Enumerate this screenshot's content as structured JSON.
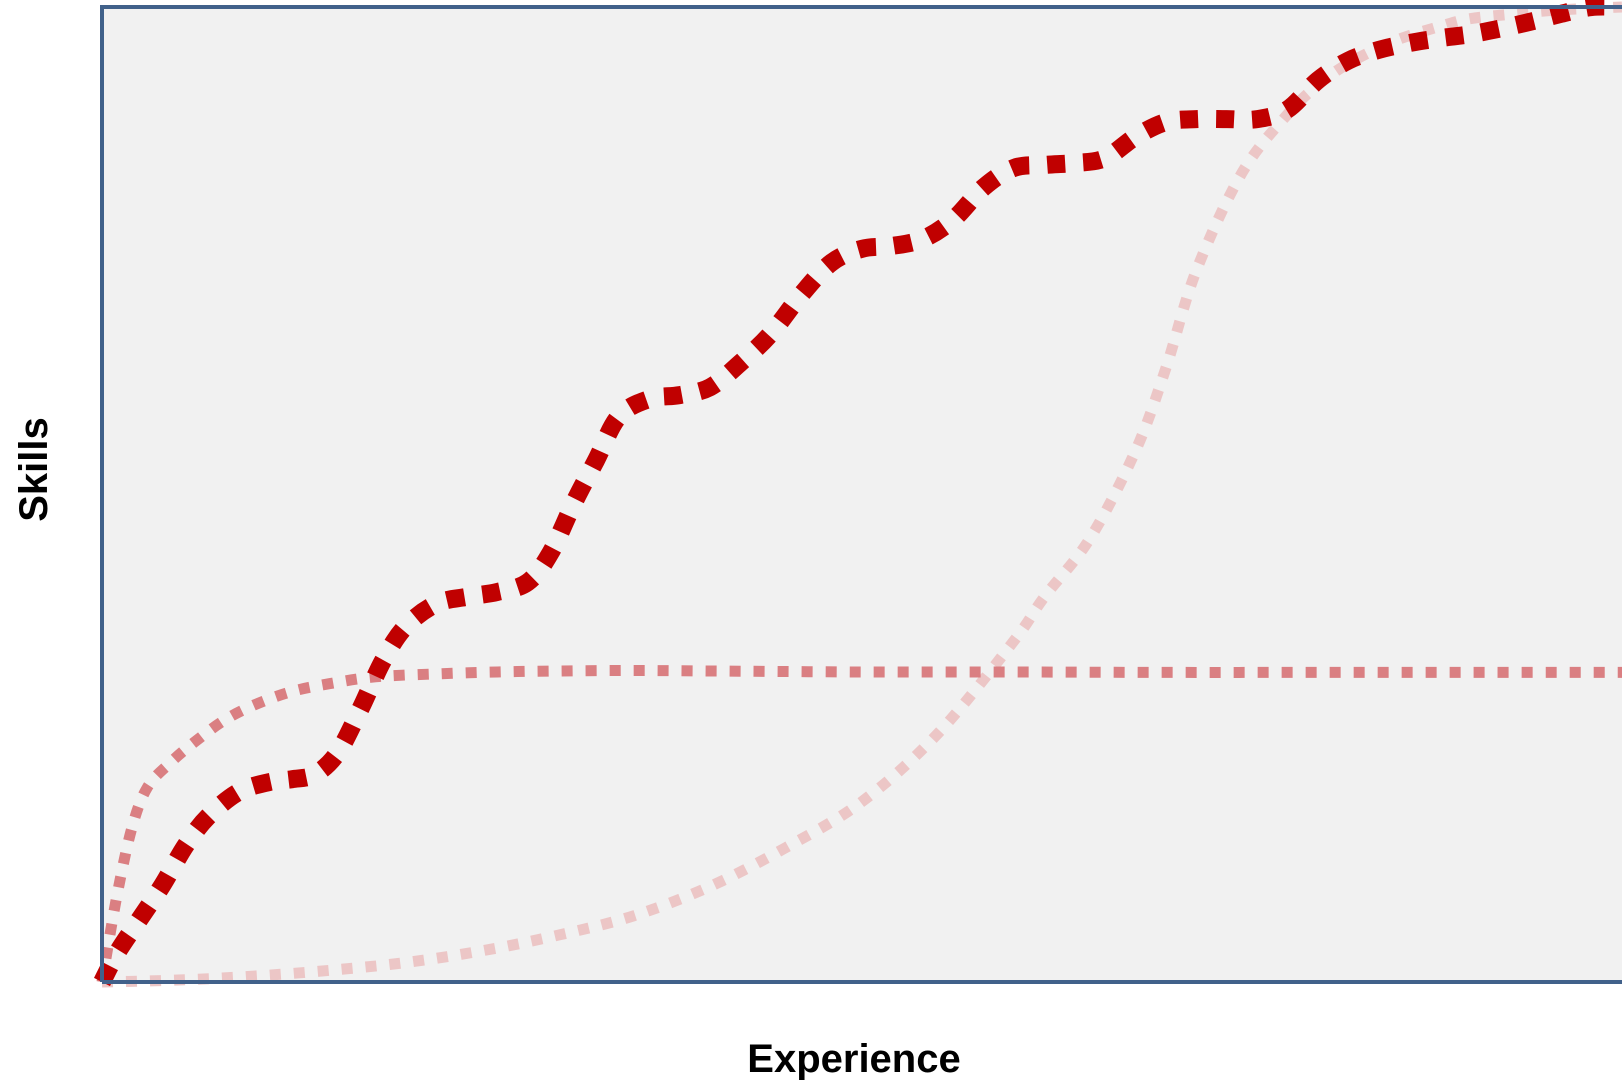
{
  "chart_data": {
    "type": "line",
    "title": "",
    "xlabel": "Experience",
    "ylabel": "Skills",
    "xlim": [
      0,
      100
    ],
    "ylim": [
      0,
      100
    ],
    "grid": false,
    "legend": "none",
    "tick_labels": false,
    "background_color": "#f1f1f1",
    "axis_color": "#41618a",
    "series": [
      {
        "color": "#ecc6c6",
        "style": "dotted",
        "x": [
          0,
          5,
          10,
          15,
          20,
          25,
          30,
          35,
          40,
          45,
          50,
          55,
          60,
          62,
          65,
          68,
          70,
          72,
          75,
          78,
          80,
          82,
          85,
          88,
          90,
          93,
          95,
          97,
          100
        ],
        "y": [
          0,
          0.2,
          0.6,
          1.2,
          2.0,
          3.2,
          4.8,
          6.8,
          9.8,
          13.8,
          18.5,
          25.5,
          35.0,
          39.5,
          45.5,
          54.5,
          63.0,
          73.0,
          83.0,
          89.0,
          92.0,
          94.2,
          96.5,
          98.0,
          98.8,
          99.3,
          99.6,
          99.8,
          100
        ]
      },
      {
        "color": "#da7f82",
        "style": "dotted",
        "x": [
          0,
          1,
          2,
          3,
          4.5,
          6,
          8,
          10,
          12.5,
          15,
          18,
          22,
          26,
          30,
          35,
          40,
          50,
          60,
          70,
          80,
          90,
          100
        ],
        "y": [
          0,
          9,
          16,
          20,
          22.5,
          24.5,
          26.8,
          28.4,
          29.8,
          30.6,
          31.3,
          31.6,
          31.8,
          31.9,
          31.95,
          31.9,
          31.8,
          31.8,
          31.75,
          31.75,
          31.75,
          31.75
        ]
      },
      {
        "color": "#c00000",
        "style": "dashed",
        "x": [
          0,
          1,
          2.5,
          4,
          5.5,
          7,
          9,
          11,
          12.5,
          14,
          15.5,
          17,
          18.5,
          20,
          22,
          24,
          26,
          28,
          29.5,
          31,
          32.5,
          34,
          36,
          38,
          40,
          42,
          44,
          46,
          48,
          50,
          52,
          54,
          56,
          58,
          60,
          62,
          64,
          66,
          68,
          70,
          72,
          74,
          76,
          78,
          80,
          82,
          84,
          86,
          88,
          90,
          92,
          94,
          96,
          98,
          100
        ],
        "y": [
          0,
          3,
          6.5,
          10,
          14,
          17,
          19.5,
          20.5,
          20.8,
          21.3,
          23.5,
          28,
          33,
          36.5,
          38.8,
          39.5,
          40,
          41,
          44,
          49,
          53.5,
          58,
          59.8,
          60.2,
          61,
          63.5,
          66.5,
          70.5,
          73.8,
          75.2,
          75.5,
          76.2,
          78.2,
          81.5,
          83.5,
          83.8,
          84,
          84.5,
          86.7,
          88.2,
          88.5,
          88.5,
          88.5,
          89.5,
          92.5,
          94.5,
          95.6,
          96.3,
          96.8,
          97.2,
          97.8,
          98.5,
          99.3,
          100,
          100
        ]
      }
    ]
  }
}
